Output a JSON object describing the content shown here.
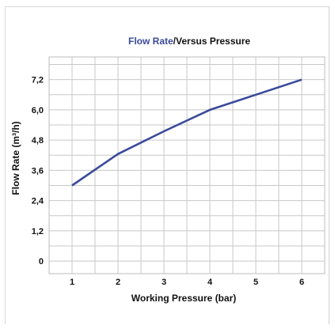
{
  "chart_data": {
    "type": "line",
    "title_part1": "Flow Rate",
    "title_part2": "/Versus Pressure",
    "xlabel": "Working Pressure (bar)",
    "ylabel": "Flow Rate (m³/h)",
    "x": [
      1,
      2,
      3,
      4,
      5,
      6
    ],
    "x_ticks": [
      "1",
      "2",
      "3",
      "4",
      "5",
      "6"
    ],
    "y_ticks": [
      "0",
      "1,2",
      "2,4",
      "3,6",
      "4,8",
      "6,0",
      "7,2"
    ],
    "y_tick_values": [
      0,
      1.2,
      2.4,
      3.6,
      4.8,
      6.0,
      7.2
    ],
    "xlim": [
      0.5,
      6.5
    ],
    "ylim": [
      -0.5,
      8.1
    ],
    "series": [
      {
        "values": [
          3.0,
          4.25,
          5.15,
          6.0,
          6.6,
          7.2
        ]
      }
    ],
    "grid": true,
    "colors": {
      "line": "#3a4a9a",
      "title_accent": "#3a4a9a",
      "grid": "#c8c8c8"
    }
  }
}
